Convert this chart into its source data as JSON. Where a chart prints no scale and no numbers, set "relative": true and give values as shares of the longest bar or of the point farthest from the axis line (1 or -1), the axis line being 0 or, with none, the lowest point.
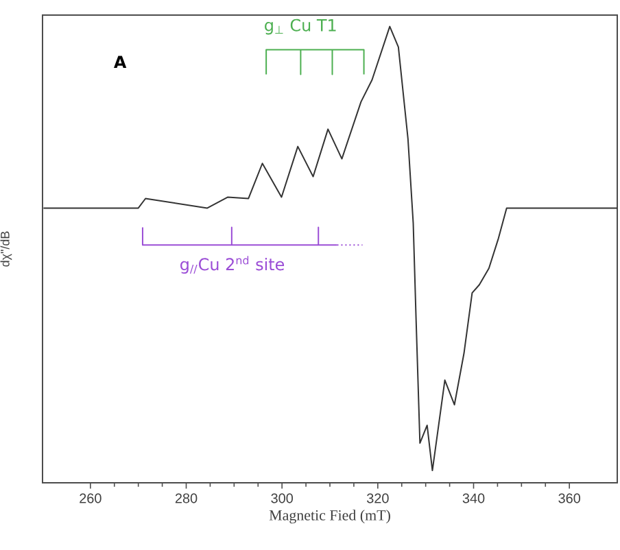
{
  "chart_data": {
    "type": "line",
    "relative": true,
    "xlabel": "Magnetic Fied (mT)",
    "ylabel": "dχ\"/dB",
    "xlim": [
      250,
      370
    ],
    "xticks": [
      260,
      280,
      300,
      320,
      340,
      360
    ],
    "marker": "none",
    "line_style": "solid",
    "series": [
      {
        "color": "#333333",
        "x": [
          250.2,
          270.0,
          271.5,
          284.4,
          288.7,
          293.0,
          295.9,
          299.9,
          303.3,
          306.5,
          309.6,
          312.5,
          316.5,
          318.8,
          322.5,
          324.3,
          326.3,
          327.4,
          328.0,
          328.8,
          330.3,
          331.4,
          334.0,
          336.0,
          338.0,
          339.7,
          341.2,
          343.2,
          345.2,
          346.9,
          370
        ],
        "values": [
          0.602,
          0.602,
          0.623,
          0.602,
          0.626,
          0.623,
          0.7,
          0.626,
          0.737,
          0.671,
          0.775,
          0.71,
          0.835,
          0.883,
          1.0,
          0.955,
          0.754,
          0.569,
          0.356,
          0.087,
          0.126,
          0.027,
          0.225,
          0.171,
          0.284,
          0.416,
          0.434,
          0.47,
          0.536,
          0.602,
          0.602
        ]
      },
      {
        "color": "#4caf50",
        "x": [
          296.7,
          296.7,
          303.9,
          303.9,
          303.9,
          310.5,
          310.5,
          310.5,
          317.1,
          317.1
        ],
        "values": [
          0.895,
          0.949,
          0.949,
          0.895,
          0.949,
          0.949,
          0.895,
          0.949,
          0.949,
          0.895
        ]
      },
      {
        "color": "#9b4dd6",
        "x": [
          270.9,
          270.9,
          289.5,
          289.5,
          289.5,
          307.6,
          307.6,
          307.6,
          311.5
        ],
        "values": [
          0.56,
          0.521,
          0.521,
          0.56,
          0.521,
          0.521,
          0.56,
          0.521,
          0.521
        ]
      },
      {
        "color": "#9b4dd6",
        "line_style": "dotted",
        "x": [
          311.5,
          316.8
        ],
        "values": [
          0.521,
          0.521
        ]
      }
    ],
    "annotations": [
      "**A**",
      "g$_{⊥}$ Cu T1",
      "g$_{//}$Cu 2$^{nd}$ site"
    ]
  }
}
